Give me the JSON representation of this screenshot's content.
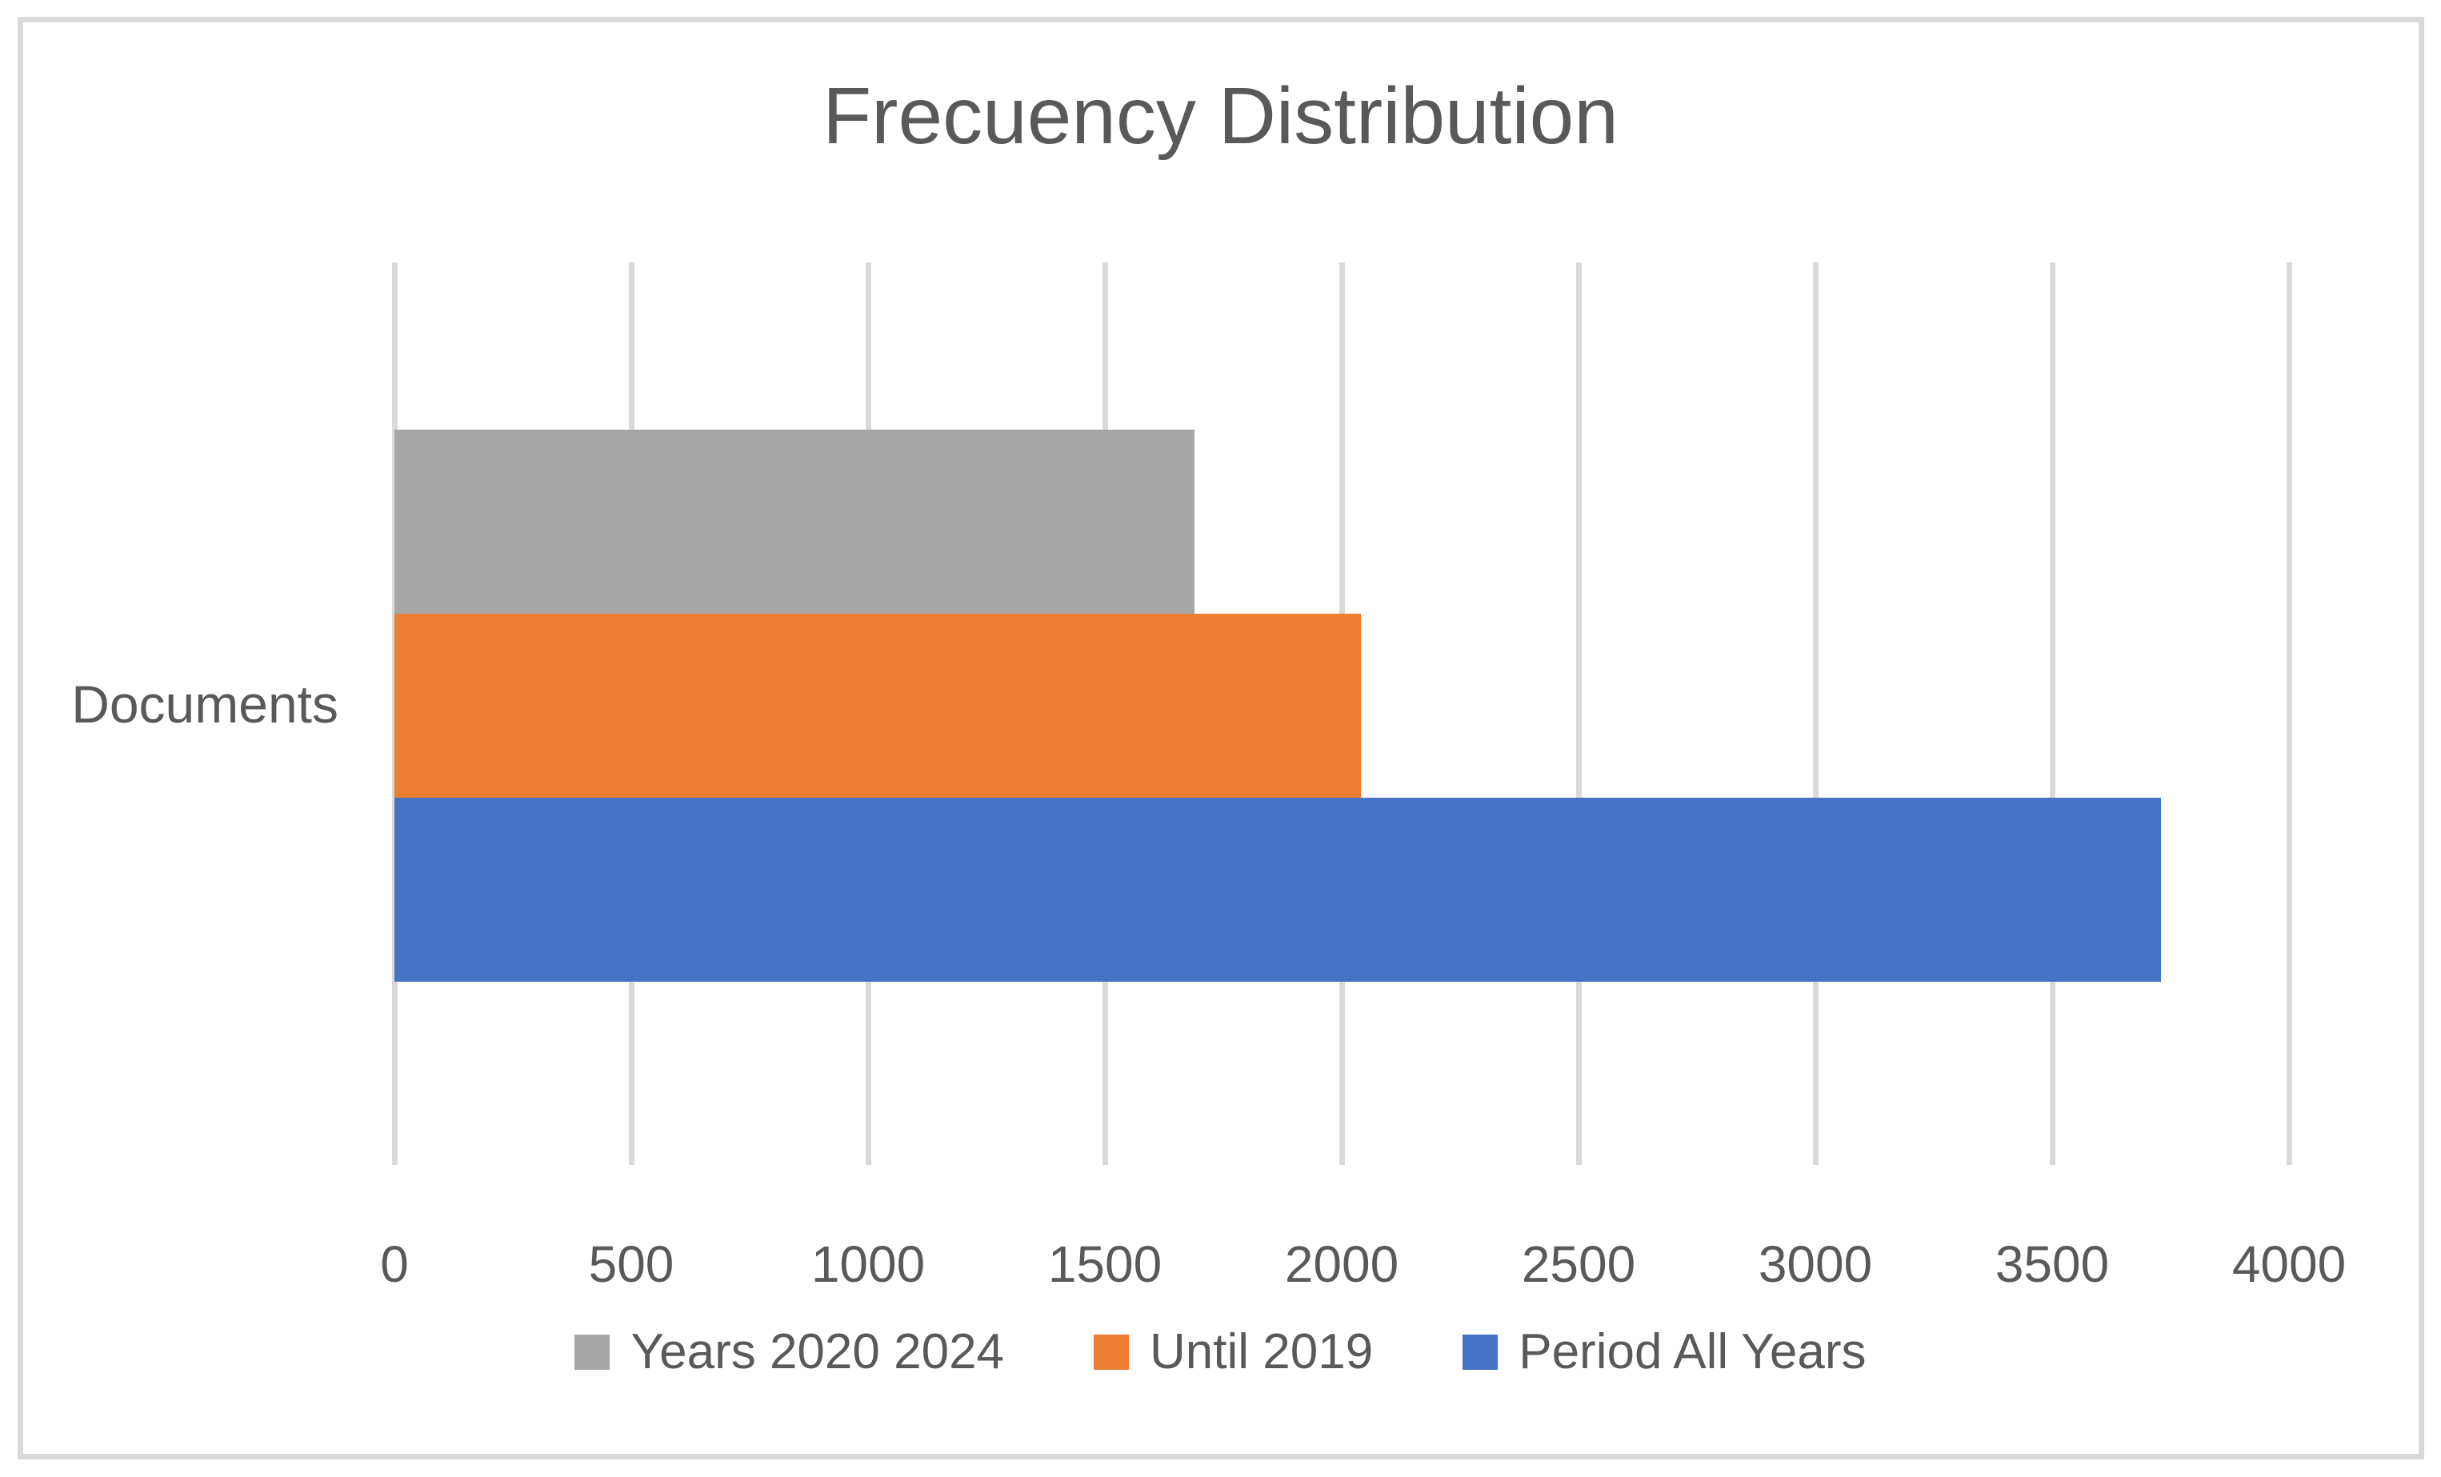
{
  "chart": {
    "title": "Frecuency Distribution",
    "category_label": "Documents"
  },
  "chart_data": {
    "type": "bar",
    "orientation": "horizontal",
    "title": "Frecuency Distribution",
    "categories": [
      "Documents"
    ],
    "series": [
      {
        "name": "Years 2020 2024",
        "values": [
          1690
        ],
        "color": "#A6A6A6"
      },
      {
        "name": "Until 2019",
        "values": [
          2040
        ],
        "color": "#ED7D31"
      },
      {
        "name": "Period All Years",
        "values": [
          3730
        ],
        "color": "#4472C4"
      }
    ],
    "xlabel": "",
    "ylabel": "",
    "xlim": [
      0,
      4000
    ],
    "xticks": [
      0,
      500,
      1000,
      1500,
      2000,
      2500,
      3000,
      3500,
      4000
    ],
    "grid": "vertical",
    "legend_position": "bottom",
    "colors": {
      "text": "#595959",
      "gridline": "#D9D9D9",
      "frame_border": "#D9D9D9",
      "background": "#FFFFFF"
    }
  }
}
